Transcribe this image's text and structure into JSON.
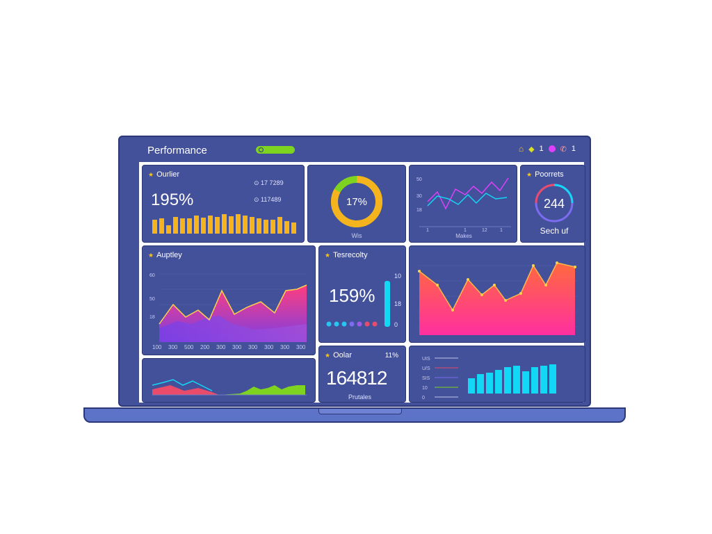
{
  "header": {
    "title": "Performance",
    "icons": [
      "home-icon",
      "shield-icon",
      "user-dot-icon",
      "phone-icon"
    ],
    "badge_count": "1",
    "phone_count": "1"
  },
  "cards": {
    "outlier": {
      "title": "Ourlier",
      "value": "195%",
      "stat1_icon": "circle-b-icon",
      "stat1": "17 7289",
      "stat2_icon": "link-icon",
      "stat2": "117489",
      "bars": [
        20,
        22,
        12,
        24,
        22,
        22,
        26,
        23,
        26,
        24,
        28,
        25,
        28,
        26,
        24,
        22,
        20,
        20,
        24,
        18,
        16
      ]
    },
    "donut": {
      "value": "17%",
      "label": "Wis",
      "fraction": 0.83
    },
    "lines": {
      "y_ticks": [
        "50",
        "30",
        "18"
      ],
      "x_ticks": [
        "1",
        "1",
        "12",
        "1"
      ],
      "label": "Makes"
    },
    "progress": {
      "title": "Poorrets",
      "value": "244",
      "label": "Sech uf"
    },
    "activity": {
      "title": "Auptley",
      "y_ticks": [
        "60",
        "50",
        "18"
      ],
      "x_ticks": [
        "100",
        "300",
        "500",
        "200",
        "300",
        "300",
        "300",
        "300",
        "300",
        "300"
      ]
    },
    "tesselocity": {
      "title": "Tesrecolty",
      "value": "159%",
      "right_ticks": [
        "10",
        "18",
        "0"
      ],
      "dot_colors": [
        "#27c6f0",
        "#27c6f0",
        "#27c6f0",
        "#7b6cf0",
        "#9b5de5",
        "#e94b6a",
        "#e94b6a"
      ]
    },
    "dollar": {
      "title": "Oolar",
      "percent": "11%",
      "value": "164812",
      "label": "Prutales"
    },
    "bars_right": {
      "legend_labels": [
        "UIS",
        "U/S",
        "SIS",
        "10",
        "0"
      ],
      "legend_colors": [
        "#c0c6e8",
        "#e94b6a",
        "#7b6cf0",
        "#7ed321",
        "#c0c6e8"
      ],
      "bars": [
        22,
        28,
        30,
        34,
        38,
        40,
        32,
        38,
        40,
        42
      ]
    }
  },
  "colors": {
    "accent_yellow": "#f5c518",
    "bar_orange": "#f5b41e",
    "cyan": "#13d8f5",
    "pink": "#ff3d7f",
    "green": "#7ed321",
    "panel": "#43509a",
    "border": "#2c3778"
  }
}
